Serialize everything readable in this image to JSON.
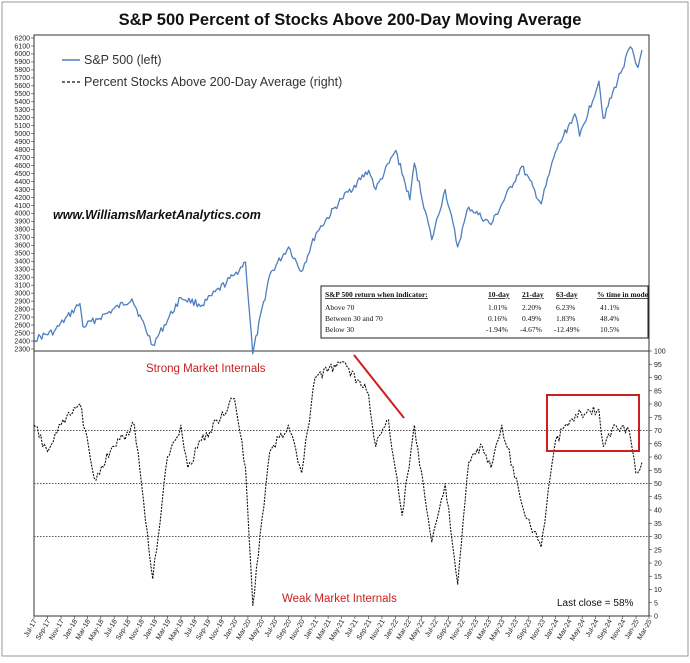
{
  "chart_data": {
    "type": "line",
    "title": "S&P 500 Percent of Stocks Above 200-Day Moving Average",
    "website": "www.WilliamsMarketAnalytics.com",
    "legend": {
      "position": "top-left",
      "items": [
        {
          "label": "S&P 500 (left)",
          "style": "solid",
          "color": "#4f7fbf"
        },
        {
          "label": "Percent Stocks Above 200-Day Average (right)",
          "style": "dashed",
          "color": "#111111"
        }
      ]
    },
    "upper_panel": {
      "y_axis": "left",
      "ylim": [
        2300,
        6200
      ],
      "ytick_step": 100,
      "series_name": "S&P 500 (left)",
      "color": "#4f7fbf",
      "x": [
        "2017-07-01",
        "2017-10-01",
        "2018-01-26",
        "2018-02-09",
        "2018-06-01",
        "2018-09-20",
        "2018-12-24",
        "2019-04-30",
        "2019-08-05",
        "2019-12-31",
        "2020-02-19",
        "2020-03-23",
        "2020-06-08",
        "2020-09-02",
        "2020-10-30",
        "2021-01-05",
        "2021-05-01",
        "2021-09-02",
        "2021-10-04",
        "2022-01-03",
        "2022-03-08",
        "2022-03-29",
        "2022-06-16",
        "2022-08-16",
        "2022-10-12",
        "2022-12-01",
        "2023-03-13",
        "2023-07-31",
        "2023-10-27",
        "2023-12-31",
        "2024-03-28",
        "2024-04-19",
        "2024-07-16",
        "2024-08-05",
        "2024-12-06",
        "2024-12-31",
        "2025-01-10",
        "2025-01-28"
      ],
      "values": [
        2420,
        2520,
        2870,
        2580,
        2750,
        2930,
        2350,
        2945,
        2850,
        3230,
        3390,
        2240,
        3230,
        3580,
        3270,
        3750,
        4180,
        4540,
        4300,
        4790,
        4170,
        4630,
        3670,
        4300,
        3580,
        4080,
        3860,
        4590,
        4120,
        4770,
        5250,
        4970,
        5660,
        5190,
        6090,
        5880,
        5830,
        6050
      ]
    },
    "lower_panel": {
      "y_axis": "right",
      "ylim": [
        0,
        100
      ],
      "ytick_step": 5,
      "series_name": "Percent Stocks Above 200-Day Average (right)",
      "color": "#111111",
      "x": [
        "2017-07-01",
        "2017-09-01",
        "2017-11-01",
        "2018-01-26",
        "2018-04-01",
        "2018-07-01",
        "2018-10-01",
        "2018-12-24",
        "2019-03-01",
        "2019-05-01",
        "2019-06-01",
        "2019-08-01",
        "2019-12-31",
        "2020-02-19",
        "2020-03-23",
        "2020-06-08",
        "2020-09-01",
        "2020-11-01",
        "2021-01-01",
        "2021-05-01",
        "2021-09-01",
        "2021-10-04",
        "2021-12-01",
        "2022-02-01",
        "2022-03-29",
        "2022-06-16",
        "2022-08-16",
        "2022-10-12",
        "2022-12-01",
        "2023-02-01",
        "2023-03-13",
        "2023-05-01",
        "2023-08-01",
        "2023-10-27",
        "2023-12-31",
        "2024-04-01",
        "2024-07-16",
        "2024-08-05",
        "2024-10-01",
        "2024-12-01",
        "2024-12-31",
        "2025-01-28"
      ],
      "values": [
        72,
        62,
        72,
        80,
        52,
        64,
        72,
        14,
        60,
        72,
        56,
        66,
        82,
        56,
        4,
        62,
        72,
        54,
        90,
        96,
        84,
        64,
        74,
        38,
        72,
        28,
        50,
        12,
        58,
        64,
        56,
        72,
        42,
        26,
        66,
        76,
        78,
        64,
        72,
        70,
        54,
        58
      ]
    },
    "horizontal_lines": [
      70,
      50,
      30
    ],
    "x_ticks": [
      "Jul-17",
      "Sep-17",
      "Nov-17",
      "Jan-18",
      "Mar-18",
      "May-18",
      "Jul-18",
      "Sep-18",
      "Nov-18",
      "Jan-19",
      "Mar-19",
      "May-19",
      "Jul-19",
      "Sep-19",
      "Nov-19",
      "Jan-20",
      "Mar-20",
      "May-20",
      "Jul-20",
      "Sep-20",
      "Nov-20",
      "Jan-21",
      "Mar-21",
      "May-21",
      "Jul-21",
      "Sep-21",
      "Nov-21",
      "Jan-22",
      "Mar-22",
      "May-22",
      "Jul-22",
      "Sep-22",
      "Nov-22",
      "Jan-23",
      "Mar-23",
      "May-23",
      "Jul-23",
      "Sep-23",
      "Nov-23",
      "Jan-24",
      "Mar-24",
      "May-24",
      "Jul-24",
      "Sep-24",
      "Nov-24",
      "Jan-25",
      "Mar-25"
    ],
    "table": {
      "headers": [
        "S&P 500 return when indicator:",
        "10-day",
        "21-day",
        "63-day",
        "% time in mode"
      ],
      "rows": [
        [
          "Above 70",
          "1.01%",
          "2.20%",
          "6.23%",
          "41.1%"
        ],
        [
          "Between 30 and 70",
          "0.16%",
          "0.49%",
          "1.83%",
          "48.4%"
        ],
        [
          "Below 30",
          "-1.94%",
          "-4.67%",
          "-12.49%",
          "10.5%"
        ]
      ]
    },
    "annotations": {
      "strong": "Strong Market Internals",
      "weak": "Weak Market Internals",
      "last_close": "Last close = 58%",
      "annotation_color": "#cc1f1f"
    },
    "grid": false
  }
}
